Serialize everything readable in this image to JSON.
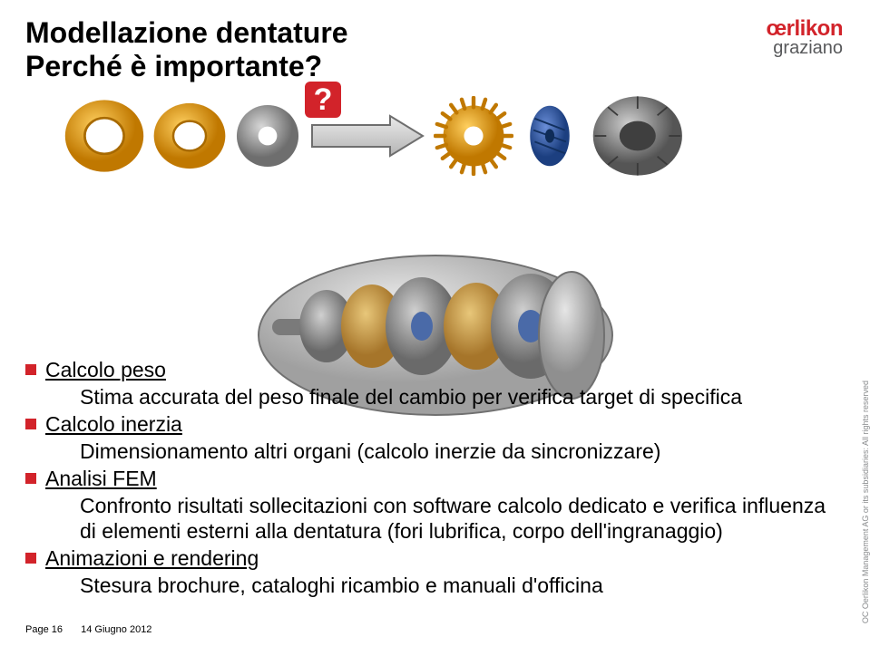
{
  "title": {
    "line1": "Modellazione dentature",
    "line2": "Perché è importante?"
  },
  "logo": {
    "main": "œrlikon",
    "sub": "graziano",
    "color_main": "#d2232a",
    "color_sub": "#58595b"
  },
  "copyright": "OC Oerlikon Management AG or its subsidiaries: All rights reserved",
  "illustration": {
    "qmark": "?",
    "qmark_bg": "#d2232a",
    "gears": [
      {
        "name": "ring-yellow-1",
        "color": "#f0a400",
        "inner": "#c07800"
      },
      {
        "name": "ring-yellow-2",
        "color": "#f0a400",
        "inner": "#c07800"
      },
      {
        "name": "disc-grey",
        "color": "#9a9a9a",
        "inner": "#6e6e6e"
      },
      {
        "name": "arrow",
        "color": "#c9c9c9",
        "stroke": "#6e6e6e"
      },
      {
        "name": "gear-yellow-3",
        "color": "#f0a400",
        "inner": "#c07800"
      },
      {
        "name": "helical-blue",
        "color": "#2f5fb5",
        "inner": "#1c3f80"
      },
      {
        "name": "bevel-grey",
        "color": "#888888",
        "inner": "#555555"
      }
    ],
    "assembly_colors": {
      "housing": "#b0b0b0",
      "shaft": "#7a7a7a",
      "gear_a": "#9e9e9e",
      "gear_b": "#d6a24a",
      "accent": "#4a6aa8"
    }
  },
  "bullets": [
    {
      "heading": "Calcolo peso",
      "sub": "Stima accurata del peso finale del cambio per verifica target di specifica"
    },
    {
      "heading": "Calcolo inerzia",
      "sub": "Dimensionamento altri organi (calcolo inerzie da sincronizzare)"
    },
    {
      "heading": "Analisi FEM",
      "sub": "Confronto risultati sollecitazioni con software calcolo dedicato e verifica influenza di elementi esterni alla dentatura (fori lubrifica, corpo dell'ingranaggio)"
    },
    {
      "heading": "Animazioni e rendering",
      "sub": "Stesura brochure, cataloghi ricambio e manuali d'officina"
    }
  ],
  "footer": {
    "page_label": "Page",
    "page_num": "16",
    "date": "14 Giugno 2012"
  },
  "style": {
    "title_fontsize": 32,
    "bullet_fontsize": 23,
    "footer_fontsize": 11,
    "accent_color": "#d2232a",
    "text_color": "#000000",
    "bg": "#ffffff"
  }
}
